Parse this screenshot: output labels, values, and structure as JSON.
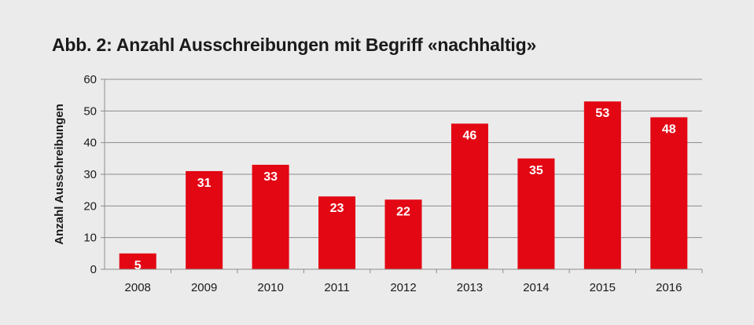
{
  "chart_data": {
    "type": "bar",
    "title": "Abb. 2: Anzahl Ausschreibungen mit Begriff «nachhaltig»",
    "xlabel": "",
    "ylabel": "Anzahl Ausschreibungen",
    "categories": [
      "2008",
      "2009",
      "2010",
      "2011",
      "2012",
      "2013",
      "2014",
      "2015",
      "2016"
    ],
    "values": [
      5,
      31,
      33,
      23,
      22,
      46,
      35,
      53,
      48
    ],
    "ylim": [
      0,
      60
    ],
    "yticks": [
      0,
      10,
      20,
      30,
      40,
      50,
      60
    ],
    "grid": true,
    "legend": "none",
    "bar_color": "#e30613",
    "data_labels": true
  }
}
